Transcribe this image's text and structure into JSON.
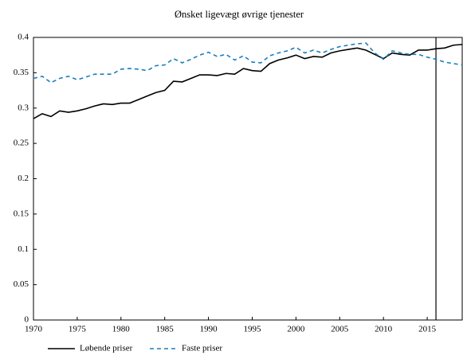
{
  "chart_data": {
    "type": "line",
    "title": "Ønsket ligevægt øvrige tjenester",
    "x": [
      1970,
      1971,
      1972,
      1973,
      1974,
      1975,
      1976,
      1977,
      1978,
      1979,
      1980,
      1981,
      1982,
      1983,
      1984,
      1985,
      1986,
      1987,
      1988,
      1989,
      1990,
      1991,
      1992,
      1993,
      1994,
      1995,
      1996,
      1997,
      1998,
      1999,
      2000,
      2001,
      2002,
      2003,
      2004,
      2005,
      2006,
      2007,
      2008,
      2009,
      2010,
      2011,
      2012,
      2013,
      2014,
      2015,
      2016,
      2017,
      2018,
      2019
    ],
    "series": [
      {
        "name": "Løbende priser",
        "color": "#000000",
        "dash": false,
        "values": [
          0.285,
          0.292,
          0.288,
          0.296,
          0.294,
          0.296,
          0.299,
          0.303,
          0.306,
          0.305,
          0.307,
          0.307,
          0.312,
          0.317,
          0.322,
          0.325,
          0.338,
          0.337,
          0.342,
          0.347,
          0.347,
          0.346,
          0.349,
          0.348,
          0.356,
          0.353,
          0.352,
          0.363,
          0.368,
          0.371,
          0.375,
          0.37,
          0.373,
          0.372,
          0.378,
          0.381,
          0.383,
          0.385,
          0.382,
          0.376,
          0.37,
          0.378,
          0.376,
          0.375,
          0.382,
          0.382,
          0.384,
          0.385,
          0.389,
          0.39
        ]
      },
      {
        "name": "Faste priser",
        "color": "#1a7fc0",
        "dash": true,
        "values": [
          0.342,
          0.345,
          0.336,
          0.342,
          0.345,
          0.34,
          0.344,
          0.348,
          0.348,
          0.348,
          0.355,
          0.356,
          0.355,
          0.353,
          0.36,
          0.361,
          0.37,
          0.364,
          0.369,
          0.375,
          0.379,
          0.373,
          0.376,
          0.368,
          0.374,
          0.365,
          0.364,
          0.374,
          0.378,
          0.381,
          0.386,
          0.378,
          0.382,
          0.378,
          0.383,
          0.387,
          0.389,
          0.391,
          0.392,
          0.378,
          0.369,
          0.381,
          0.378,
          0.376,
          0.376,
          0.372,
          0.369,
          0.365,
          0.363,
          0.361
        ]
      }
    ],
    "vlines": [
      2016
    ],
    "xlim": [
      1970,
      2019
    ],
    "xticks": [
      1970,
      1975,
      1980,
      1985,
      1990,
      1995,
      2000,
      2005,
      2010,
      2015
    ],
    "ylim": [
      0,
      0.4
    ],
    "yticks": [
      0,
      0.05,
      0.1,
      0.15,
      0.2,
      0.25,
      0.3,
      0.35,
      0.4
    ]
  }
}
